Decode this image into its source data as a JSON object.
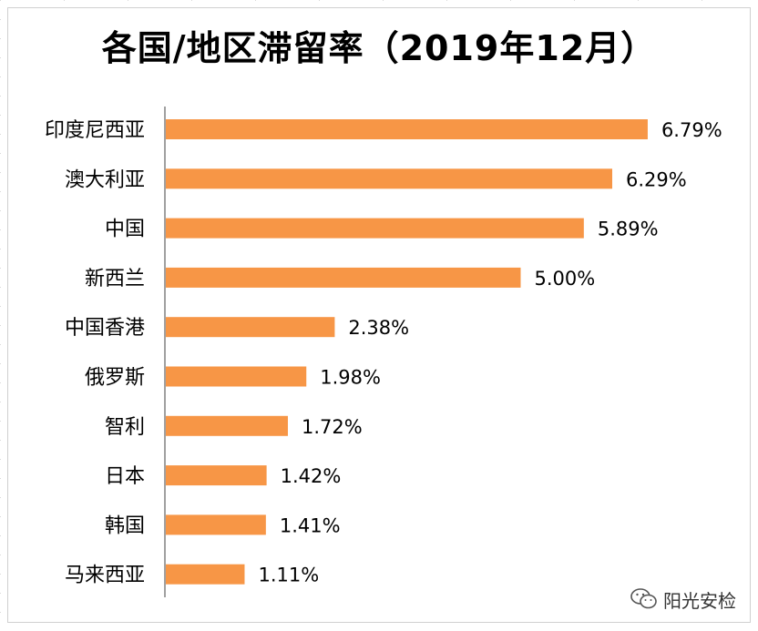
{
  "chart_data": {
    "type": "bar",
    "orientation": "horizontal",
    "title": "各国/地区滞留率（2019年12月）",
    "categories": [
      "印度尼西亚",
      "澳大利亚",
      "中国",
      "新西兰",
      "中国香港",
      "俄罗斯",
      "智利",
      "日本",
      "韩国",
      "马来西亚"
    ],
    "values": [
      6.79,
      6.29,
      5.89,
      5.0,
      2.38,
      1.98,
      1.72,
      1.42,
      1.41,
      1.11
    ],
    "value_labels": [
      "6.79%",
      "6.29%",
      "5.89%",
      "5.00%",
      "2.38%",
      "1.98%",
      "1.72%",
      "1.42%",
      "1.41%",
      "1.11%"
    ],
    "xlim": [
      0,
      7
    ],
    "grid": false,
    "bar_color": "#f79646"
  },
  "watermark": {
    "icon": "wechat-icon",
    "text": "阳光安检"
  }
}
